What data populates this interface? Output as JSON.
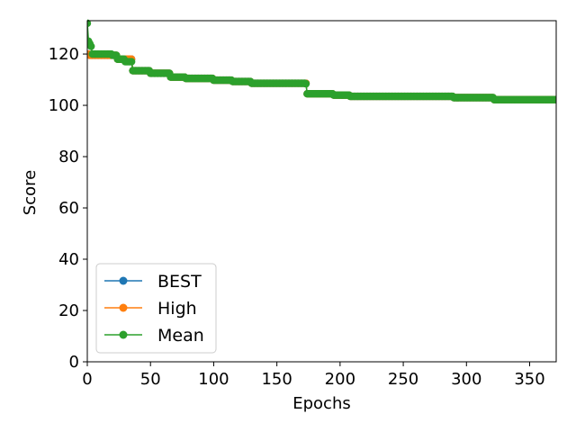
{
  "chart_data": {
    "type": "line",
    "title": "",
    "xlabel": "Epochs",
    "ylabel": "Score",
    "xlim": [
      0,
      371
    ],
    "ylim": [
      0,
      133
    ],
    "xticks": [
      0,
      50,
      100,
      150,
      200,
      250,
      300,
      350
    ],
    "yticks": [
      0,
      20,
      40,
      60,
      80,
      100,
      120
    ],
    "grid": false,
    "legend_position": "lower-left",
    "marker": "circle",
    "series": [
      {
        "name": "BEST",
        "color": "#1f77b4",
        "steps": [
          [
            1,
            120
          ],
          [
            2,
            119.5
          ],
          [
            24,
            118
          ],
          [
            36,
            113.5
          ],
          [
            50,
            112.5
          ],
          [
            66,
            111
          ],
          [
            78,
            110.5
          ],
          [
            100,
            109.8
          ],
          [
            115,
            109.3
          ],
          [
            130,
            108.6
          ],
          [
            174,
            104.5
          ],
          [
            195,
            104
          ],
          [
            208,
            103.5
          ],
          [
            290,
            103
          ],
          [
            322,
            102.2
          ],
          [
            371,
            102.2
          ]
        ]
      },
      {
        "name": "High",
        "color": "#ff7f0e",
        "steps": [
          [
            1,
            120
          ],
          [
            2,
            119.5
          ],
          [
            24,
            118
          ],
          [
            36,
            113.5
          ],
          [
            50,
            112.5
          ],
          [
            66,
            111
          ],
          [
            78,
            110.5
          ],
          [
            100,
            109.8
          ],
          [
            115,
            109.3
          ],
          [
            130,
            108.6
          ],
          [
            174,
            104.5
          ],
          [
            195,
            104
          ],
          [
            208,
            103.5
          ],
          [
            290,
            103
          ],
          [
            322,
            102.2
          ],
          [
            371,
            102.2
          ]
        ]
      },
      {
        "name": "Mean",
        "color": "#2ca02c",
        "steps": [
          [
            0,
            132
          ],
          [
            1,
            125
          ],
          [
            2,
            124
          ],
          [
            3,
            123
          ],
          [
            4,
            120
          ],
          [
            20,
            119.5
          ],
          [
            24,
            118
          ],
          [
            30,
            117
          ],
          [
            36,
            113.5
          ],
          [
            50,
            112.5
          ],
          [
            66,
            111
          ],
          [
            78,
            110.5
          ],
          [
            100,
            109.8
          ],
          [
            115,
            109.3
          ],
          [
            130,
            108.6
          ],
          [
            173,
            108.4
          ],
          [
            174,
            104.5
          ],
          [
            195,
            104
          ],
          [
            208,
            103.5
          ],
          [
            290,
            103
          ],
          [
            322,
            102.2
          ],
          [
            371,
            102.2
          ]
        ]
      }
    ]
  }
}
